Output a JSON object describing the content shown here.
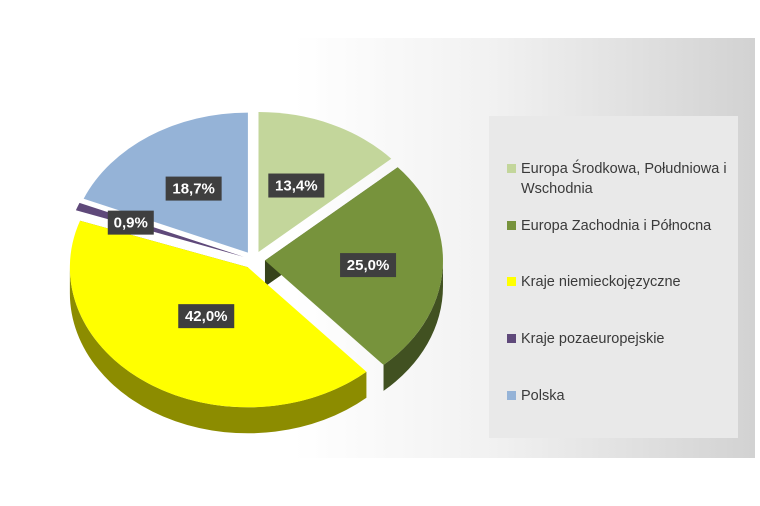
{
  "chart_data": {
    "type": "pie",
    "style": "3d-exploded",
    "title": "",
    "legend_position": "right",
    "slices": [
      {
        "name": "Europa Środkowa, Południowa i Wschodnia",
        "value": 13.4,
        "label": "13,4%",
        "color": "#c3d69b"
      },
      {
        "name": "Europa Zachodnia i Północna",
        "value": 25.0,
        "label": "25,0%",
        "color": "#77933c"
      },
      {
        "name": "Kraje niemieckojęzyczne",
        "value": 42.0,
        "label": "42,0%",
        "color": "#ffff00"
      },
      {
        "name": "Kraje pozaeuropejskie",
        "value": 0.9,
        "label": "0,9%",
        "color": "#5f497a"
      },
      {
        "name": "Polska",
        "value": 18.7,
        "label": "18,7%",
        "color": "#95b3d7"
      }
    ]
  }
}
